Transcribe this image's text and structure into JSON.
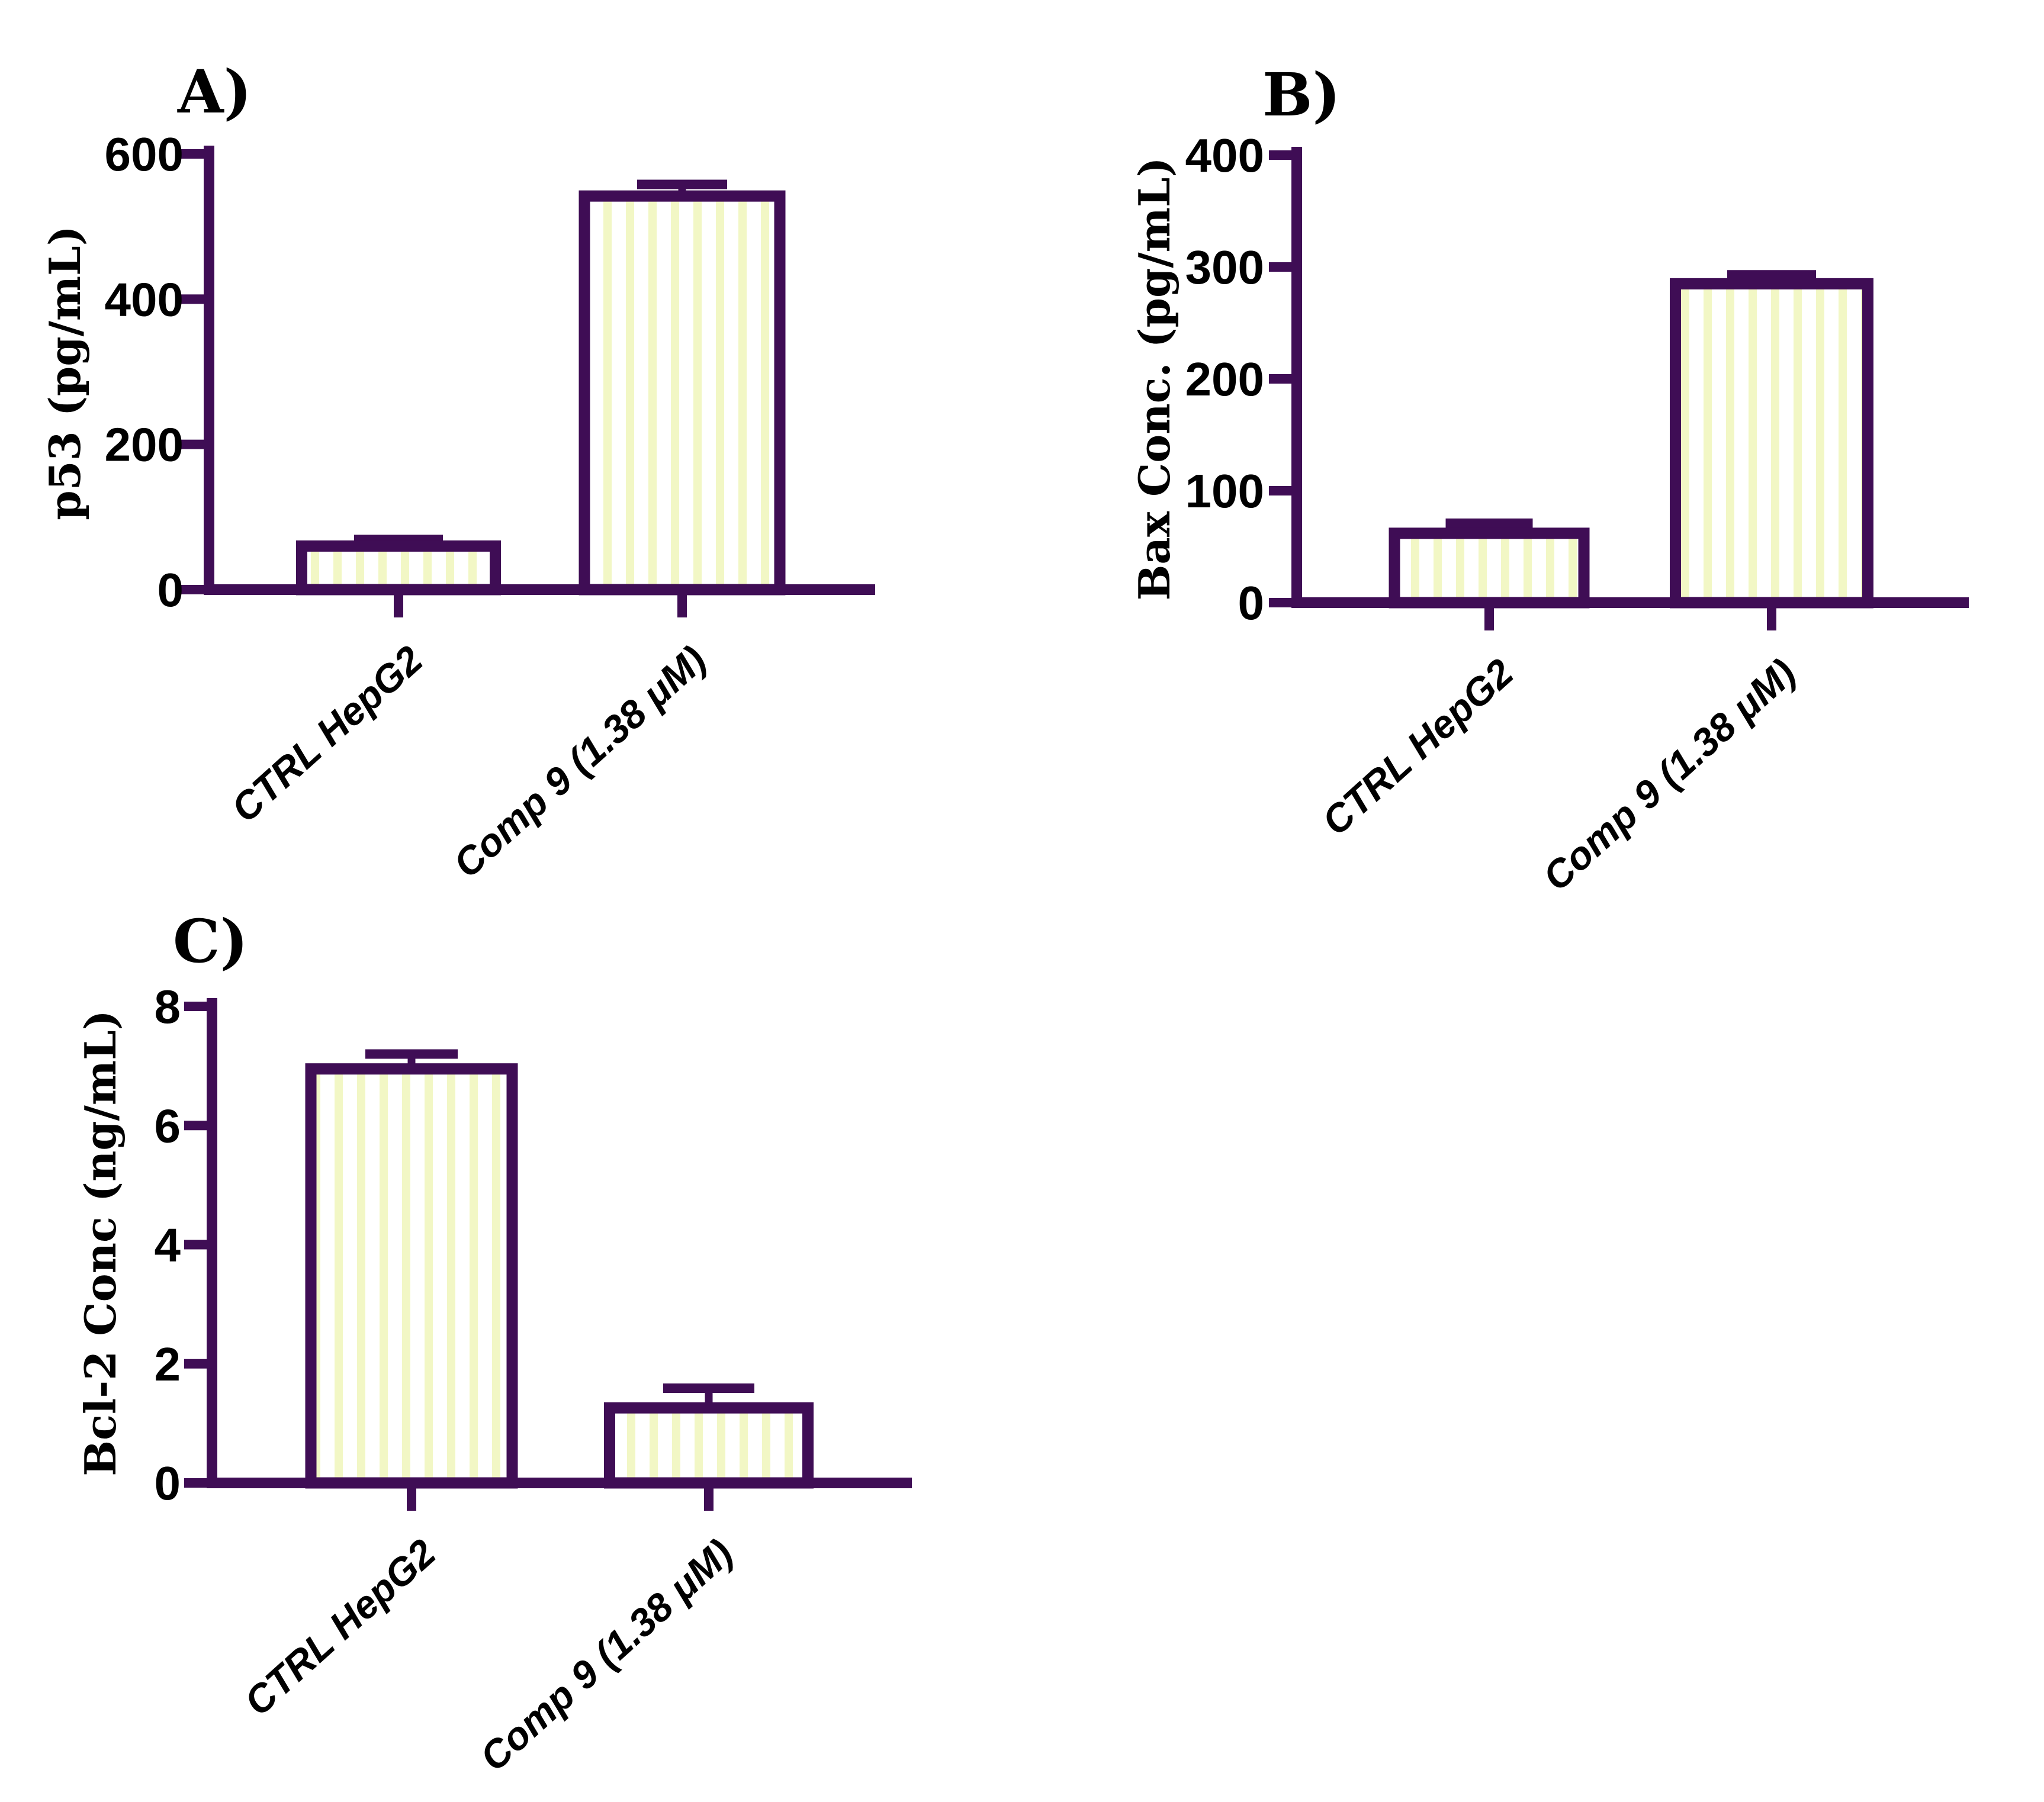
{
  "figure": {
    "background": "#ffffff",
    "accent_purple": "#3F0D55",
    "stripe_fill": "#F2F7C5",
    "bar_fill_base": "#ffffff",
    "text_color": "#000000"
  },
  "chart_data": [
    {
      "type": "bar",
      "panel_label": "A)",
      "ylabel": "p53 (pg/mL)",
      "xlabel": "",
      "categories": [
        "CTRL HepG2",
        "Comp 9 (1.38 μM)"
      ],
      "values": [
        60,
        542
      ],
      "errors_plus": [
        9,
        16
      ],
      "ylim": [
        0,
        600
      ],
      "yticks": [
        0,
        200,
        400,
        600
      ],
      "grid": false,
      "legend_position": "none",
      "bar_style": "white with pale yellow vertical stripes, thick purple outline"
    },
    {
      "type": "bar",
      "panel_label": "B)",
      "ylabel": "Bax Conc. (pg/mL)",
      "xlabel": "",
      "categories": [
        "CTRL HepG2",
        "Comp 9 (1.38 μM)"
      ],
      "values": [
        62,
        285
      ],
      "errors_plus": [
        9,
        8
      ],
      "ylim": [
        0,
        400
      ],
      "yticks": [
        0,
        100,
        200,
        300,
        400
      ],
      "grid": false,
      "legend_position": "none",
      "bar_style": "white with pale yellow vertical stripes, thick purple outline"
    },
    {
      "type": "bar",
      "panel_label": "C)",
      "ylabel": "Bcl-2 Conc (ng/mL)",
      "xlabel": "",
      "categories": [
        "CTRL HepG2",
        "Comp 9 (1.38 μM)"
      ],
      "values": [
        6.95,
        1.26
      ],
      "errors_plus": [
        0.25,
        0.33
      ],
      "ylim": [
        0,
        8
      ],
      "yticks": [
        0,
        2,
        4,
        6,
        8
      ],
      "grid": false,
      "legend_position": "none",
      "bar_style": "white with pale yellow vertical stripes, thick purple outline"
    }
  ]
}
